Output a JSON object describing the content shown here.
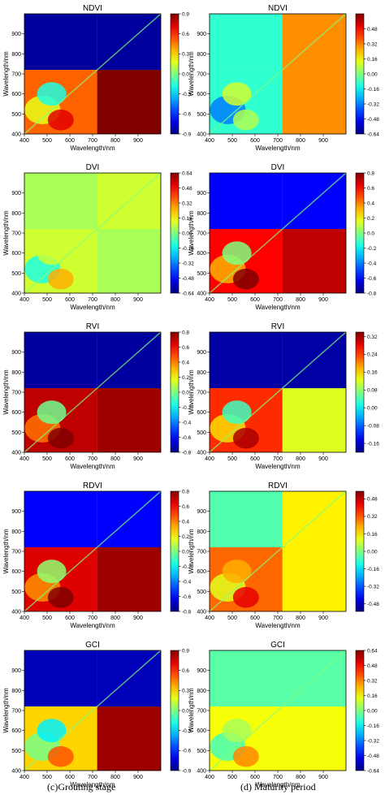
{
  "captions": [
    "(c)Grouting stage",
    "(d) Maturity period"
  ],
  "chart_data": [
    {
      "type": "heatmap",
      "title": "NDVI",
      "xlabel": "Wavelength/nm",
      "ylabel": "Wavelength/nm",
      "xticks": [
        "400",
        "500",
        "600",
        "700",
        "800",
        "900"
      ],
      "yticks": [
        "400",
        "500",
        "600",
        "700",
        "800",
        "900"
      ],
      "colorbar": [
        "-0.9",
        "-0.6",
        "-0.3",
        "0.0",
        "0.3",
        "0.6",
        "0.9"
      ],
      "xlim": [
        400,
        1000
      ],
      "ylim": [
        400,
        1000
      ],
      "vmin": -0.9,
      "vmax": 0.9,
      "regions": {
        "ur": -0.85,
        "ll": 0.5,
        "lr": 0.9,
        "ul": -0.85
      }
    },
    {
      "type": "heatmap",
      "title": "NDVI",
      "xlabel": "Wavelength/nm",
      "ylabel": "Wavelength/nm",
      "xticks": [
        "400",
        "500",
        "600",
        "700",
        "800",
        "900"
      ],
      "yticks": [
        "400",
        "500",
        "600",
        "700",
        "800",
        "900"
      ],
      "colorbar": [
        "-0.64",
        "-0.48",
        "-0.32",
        "-0.16",
        "0.00",
        "0.16",
        "0.32",
        "0.48"
      ],
      "xlim": [
        400,
        1000
      ],
      "ylim": [
        400,
        1000
      ],
      "vmin": -0.64,
      "vmax": 0.64,
      "regions": {
        "ur": 0.3,
        "ll": -0.1,
        "lr": 0.3,
        "ul": -0.1
      }
    },
    {
      "type": "heatmap",
      "title": "DVI",
      "xlabel": "Wavelength/nm",
      "ylabel": "Wavelength/nm",
      "xticks": [
        "400",
        "500",
        "600",
        "700",
        "800",
        "900"
      ],
      "yticks": [
        "400",
        "500",
        "600",
        "700",
        "800",
        "900"
      ],
      "colorbar": [
        "-0.64",
        "-0.48",
        "-0.32",
        "-0.16",
        "0.00",
        "0.16",
        "0.32",
        "0.48",
        "0.64"
      ],
      "xlim": [
        400,
        1000
      ],
      "ylim": [
        400,
        1000
      ],
      "vmin": -0.64,
      "vmax": 0.64,
      "regions": {
        "ur": 0.1,
        "ll": 0.1,
        "lr": 0.05,
        "ul": 0.05
      }
    },
    {
      "type": "heatmap",
      "title": "DVI",
      "xlabel": "Wavelength/nm",
      "ylabel": "Wavelength/nm",
      "xticks": [
        "400",
        "500",
        "600",
        "700",
        "800",
        "900"
      ],
      "yticks": [
        "400",
        "500",
        "600",
        "700",
        "800",
        "900"
      ],
      "colorbar": [
        "-0.8",
        "-0.6",
        "-0.4",
        "-0.2",
        "0.0",
        "0.2",
        "0.4",
        "0.6",
        "0.8"
      ],
      "xlim": [
        400,
        1000
      ],
      "ylim": [
        400,
        1000
      ],
      "vmin": -0.8,
      "vmax": 0.8,
      "regions": {
        "ur": -0.6,
        "ll": 0.6,
        "lr": 0.7,
        "ul": -0.6
      }
    },
    {
      "type": "heatmap",
      "title": "RVI",
      "xlabel": "Wavelength/nm",
      "ylabel": "Wavelength/nm",
      "xticks": [
        "400",
        "500",
        "600",
        "700",
        "800",
        "900"
      ],
      "yticks": [
        "400",
        "500",
        "600",
        "700",
        "800",
        "900"
      ],
      "colorbar": [
        "-0.8",
        "-0.6",
        "-0.4",
        "-0.2",
        "0.0",
        "0.2",
        "0.4",
        "0.6",
        "0.8"
      ],
      "xlim": [
        400,
        1000
      ],
      "ylim": [
        400,
        1000
      ],
      "vmin": -0.8,
      "vmax": 0.8,
      "regions": {
        "ur": -0.75,
        "ll": 0.7,
        "lr": 0.75,
        "ul": -0.75
      }
    },
    {
      "type": "heatmap",
      "title": "RVI",
      "xlabel": "Wavelength/nm",
      "ylabel": "Wavelength/nm",
      "xticks": [
        "400",
        "500",
        "600",
        "700",
        "800",
        "900"
      ],
      "yticks": [
        "400",
        "500",
        "600",
        "700",
        "800",
        "900"
      ],
      "colorbar": [
        "-0.16",
        "-0.08",
        "0.00",
        "0.08",
        "0.16",
        "0.24",
        "0.32"
      ],
      "xlim": [
        400,
        1000
      ],
      "ylim": [
        400,
        1000
      ],
      "vmin": -0.2,
      "vmax": 0.34,
      "regions": {
        "ur": -0.18,
        "ll": 0.25,
        "lr": 0.12,
        "ul": -0.18
      }
    },
    {
      "type": "heatmap",
      "title": "RDVI",
      "xlabel": "Wavelength/nm",
      "ylabel": "Wavelength/nm",
      "xticks": [
        "400",
        "500",
        "600",
        "700",
        "800",
        "900"
      ],
      "yticks": [
        "400",
        "500",
        "600",
        "700",
        "800",
        "900"
      ],
      "colorbar": [
        "-0.8",
        "-0.6",
        "-0.4",
        "-0.2",
        "0.0",
        "0.2",
        "0.4",
        "0.6",
        "0.8"
      ],
      "xlim": [
        400,
        1000
      ],
      "ylim": [
        400,
        1000
      ],
      "vmin": -0.8,
      "vmax": 0.8,
      "regions": {
        "ur": -0.6,
        "ll": 0.65,
        "lr": 0.75,
        "ul": -0.6
      }
    },
    {
      "type": "heatmap",
      "title": "RDVI",
      "xlabel": "Wavelength/nm",
      "ylabel": "Wavelength/nm",
      "xticks": [
        "400",
        "500",
        "600",
        "700",
        "800",
        "900"
      ],
      "yticks": [
        "400",
        "500",
        "600",
        "700",
        "800",
        "900"
      ],
      "colorbar": [
        "-0.48",
        "-0.32",
        "-0.16",
        "0.00",
        "0.16",
        "0.32",
        "0.48"
      ],
      "xlim": [
        400,
        1000
      ],
      "ylim": [
        400,
        1000
      ],
      "vmin": -0.55,
      "vmax": 0.55,
      "regions": {
        "ur": 0.15,
        "ll": 0.3,
        "lr": 0.15,
        "ul": -0.05
      }
    },
    {
      "type": "heatmap",
      "title": "GCI",
      "xlabel": "Wavelength/nm",
      "ylabel": "Wavelength/nm",
      "xticks": [
        "400",
        "500",
        "600",
        "700",
        "800",
        "900"
      ],
      "yticks": [
        "400",
        "500",
        "600",
        "700",
        "800",
        "900"
      ],
      "colorbar": [
        "-0.9",
        "-0.6",
        "-0.3",
        "0.0",
        "0.3",
        "0.6",
        "0.9"
      ],
      "xlim": [
        400,
        1000
      ],
      "ylim": [
        400,
        1000
      ],
      "vmin": -0.9,
      "vmax": 0.9,
      "regions": {
        "ur": -0.8,
        "ll": 0.3,
        "lr": 0.85,
        "ul": -0.8
      }
    },
    {
      "type": "heatmap",
      "title": "GCI",
      "xlabel": "Wavelength/nm",
      "ylabel": "Wavelength/nm",
      "xticks": [
        "400",
        "500",
        "600",
        "700",
        "800",
        "900"
      ],
      "yticks": [
        "400",
        "500",
        "600",
        "700",
        "800",
        "900"
      ],
      "colorbar": [
        "-0.64",
        "-0.48",
        "-0.32",
        "-0.16",
        "0.00",
        "0.16",
        "0.32",
        "0.48",
        "0.64"
      ],
      "xlim": [
        400,
        1000
      ],
      "ylim": [
        400,
        1000
      ],
      "vmin": -0.64,
      "vmax": 0.64,
      "regions": {
        "ur": -0.05,
        "ll": 0.15,
        "lr": 0.15,
        "ul": -0.05
      }
    }
  ]
}
